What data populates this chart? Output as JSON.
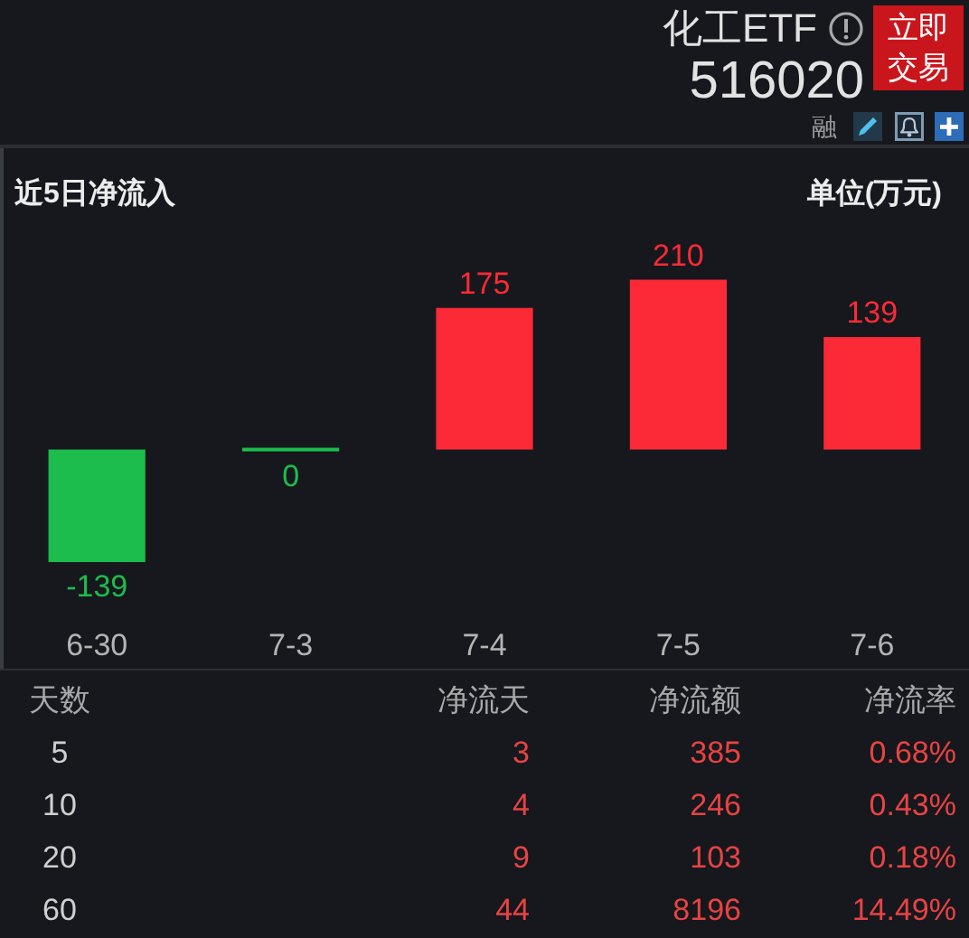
{
  "chart_data": [
    {
      "type": "other",
      "title": "化工ETF",
      "subtitle": "516020",
      "annotations": [
        "立即交易",
        "融"
      ]
    },
    {
      "type": "bar",
      "title": "近5日净流入",
      "annotations": [
        "单位(万元)"
      ],
      "categories": [
        "6-30",
        "7-3",
        "7-4",
        "7-5",
        "7-6"
      ],
      "values": [
        -139,
        0,
        175,
        210,
        139
      ],
      "colors": [
        "#1cbd4c",
        "#1cbd4c",
        "#fb2a36",
        "#fb2a36",
        "#fb2a36"
      ],
      "data_labels": true,
      "tick_labels": "x"
    },
    {
      "type": "other",
      "annotations": [
        "天数",
        "净流天",
        "净流额",
        "净流率",
        "5",
        "3",
        "385",
        "0.68%",
        "10",
        "4",
        "246",
        "0.43%",
        "20",
        "9",
        "103",
        "0.18%",
        "60",
        "44",
        "8196",
        "14.49%"
      ]
    }
  ]
}
